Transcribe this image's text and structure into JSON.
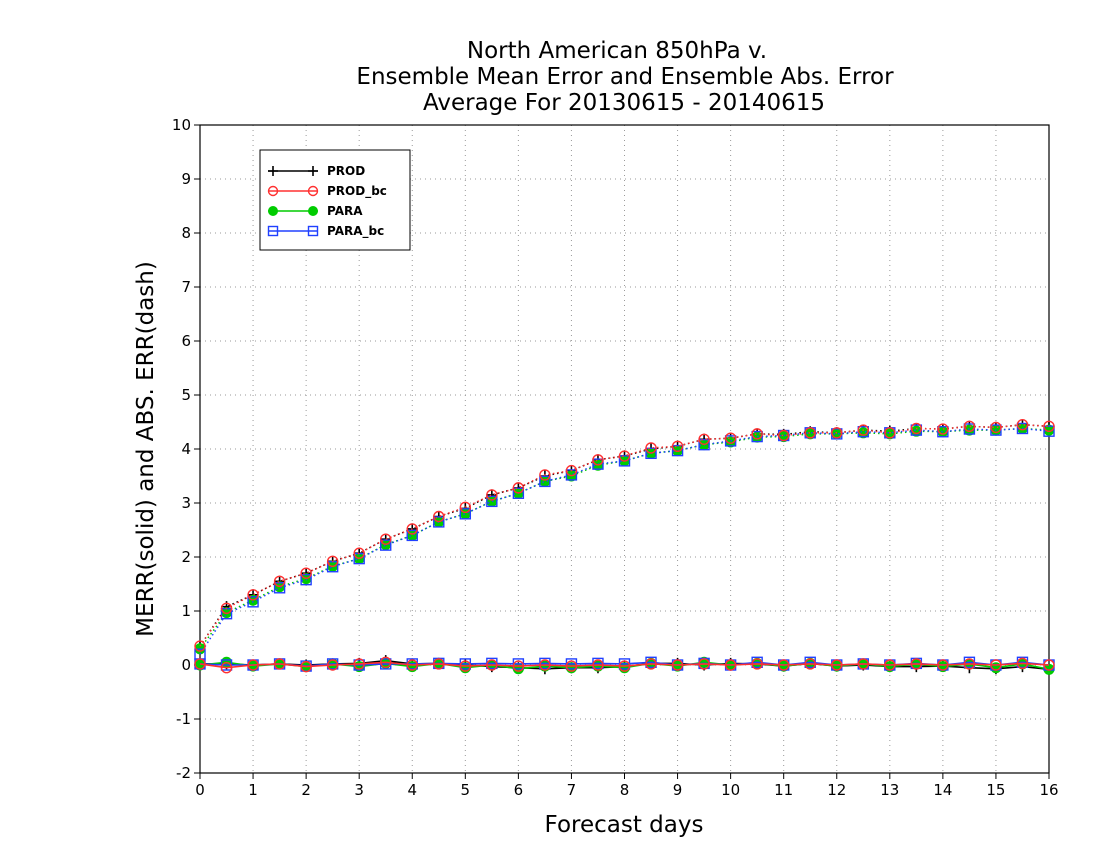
{
  "chart_data": {
    "type": "line",
    "title": [
      "North American 850hPa v.",
      "Ensemble Mean Error and Ensemble Abs. Error",
      "Average For 20130615 - 20140615"
    ],
    "xlabel": "Forecast days",
    "ylabel": "MERR(solid) and ABS. ERR(dash)",
    "xlim": [
      0,
      16
    ],
    "ylim": [
      -2,
      10
    ],
    "xticks": [
      "0",
      "1",
      "2",
      "3",
      "4",
      "5",
      "6",
      "7",
      "8",
      "9",
      "10",
      "11",
      "12",
      "13",
      "14",
      "15",
      "16"
    ],
    "yticks": [
      "-2",
      "-1",
      "0",
      "1",
      "2",
      "3",
      "4",
      "5",
      "6",
      "7",
      "8",
      "9",
      "10"
    ],
    "grid": true,
    "legend_position": "top-left",
    "x": [
      0,
      0.5,
      1,
      1.5,
      2,
      2.5,
      3,
      3.5,
      4,
      4.5,
      5,
      5.5,
      6,
      6.5,
      7,
      7.5,
      8,
      8.5,
      9,
      9.5,
      10,
      10.5,
      11,
      11.5,
      12,
      12.5,
      13,
      13.5,
      14,
      14.5,
      15,
      15.5,
      16
    ],
    "series": [
      {
        "name": "PROD",
        "color": "#000000",
        "marker": "plus",
        "merr": [
          0.02,
          0.02,
          0.0,
          0.02,
          0.0,
          0.02,
          0.03,
          0.08,
          0.02,
          0.03,
          0.0,
          -0.03,
          -0.05,
          -0.07,
          -0.05,
          -0.05,
          -0.03,
          0.03,
          0.03,
          0.0,
          0.03,
          0.02,
          -0.02,
          0.03,
          -0.02,
          0.0,
          -0.03,
          -0.03,
          -0.02,
          -0.05,
          -0.07,
          -0.03,
          -0.08
        ],
        "abserr": [
          0.35,
          1.08,
          1.3,
          1.55,
          1.7,
          1.92,
          2.07,
          2.33,
          2.52,
          2.75,
          2.9,
          3.15,
          3.28,
          3.5,
          3.6,
          3.8,
          3.87,
          4.0,
          4.05,
          4.18,
          4.2,
          4.28,
          4.27,
          4.32,
          4.3,
          4.35,
          4.33,
          4.38,
          4.37,
          4.42,
          4.4,
          4.45,
          4.42
        ]
      },
      {
        "name": "PROD_bc",
        "color": "#ff3030",
        "marker": "circle",
        "merr": [
          0.02,
          -0.05,
          0.0,
          0.02,
          -0.03,
          0.0,
          0.02,
          0.05,
          0.0,
          0.02,
          -0.02,
          0.0,
          -0.02,
          0.0,
          -0.02,
          0.0,
          -0.02,
          0.02,
          0.0,
          0.02,
          0.0,
          0.02,
          0.0,
          0.02,
          0.0,
          0.02,
          0.0,
          0.02,
          0.0,
          0.02,
          0.0,
          0.03,
          0.0
        ],
        "abserr": [
          0.35,
          1.05,
          1.3,
          1.55,
          1.7,
          1.92,
          2.07,
          2.33,
          2.52,
          2.75,
          2.92,
          3.15,
          3.28,
          3.52,
          3.6,
          3.8,
          3.87,
          4.02,
          4.05,
          4.18,
          4.2,
          4.28,
          4.25,
          4.3,
          4.3,
          4.35,
          4.3,
          4.38,
          4.37,
          4.42,
          4.4,
          4.45,
          4.42
        ]
      },
      {
        "name": "PARA",
        "color": "#00cc00",
        "marker": "filled-circle",
        "merr": [
          0.0,
          0.05,
          -0.02,
          0.02,
          -0.03,
          0.02,
          -0.03,
          0.03,
          -0.03,
          0.03,
          -0.05,
          0.0,
          -0.07,
          -0.02,
          -0.05,
          -0.02,
          -0.05,
          0.03,
          -0.02,
          0.05,
          0.0,
          0.03,
          -0.02,
          0.03,
          -0.02,
          0.02,
          -0.03,
          0.02,
          -0.03,
          0.02,
          -0.05,
          0.02,
          -0.08
        ],
        "abserr": [
          0.3,
          0.97,
          1.2,
          1.45,
          1.6,
          1.83,
          1.97,
          2.23,
          2.4,
          2.65,
          2.8,
          3.03,
          3.18,
          3.4,
          3.5,
          3.7,
          3.78,
          3.92,
          3.97,
          4.08,
          4.13,
          4.22,
          4.23,
          4.28,
          4.28,
          4.3,
          4.28,
          4.33,
          4.32,
          4.35,
          4.35,
          4.38,
          4.35
        ]
      },
      {
        "name": "PARA_bc",
        "color": "#2040ff",
        "marker": "square",
        "merr": [
          0.02,
          0.0,
          0.0,
          0.02,
          -0.02,
          0.02,
          0.0,
          0.02,
          0.02,
          0.03,
          0.02,
          0.03,
          0.02,
          0.03,
          0.02,
          0.03,
          0.02,
          0.05,
          0.0,
          0.03,
          0.0,
          0.05,
          0.0,
          0.05,
          0.0,
          0.02,
          0.0,
          0.03,
          0.0,
          0.05,
          0.0,
          0.05,
          0.0
        ],
        "abserr": [
          0.2,
          0.95,
          1.17,
          1.43,
          1.58,
          1.82,
          1.97,
          2.22,
          2.4,
          2.65,
          2.8,
          3.03,
          3.18,
          3.4,
          3.52,
          3.72,
          3.78,
          3.92,
          3.97,
          4.08,
          4.15,
          4.23,
          4.25,
          4.3,
          4.28,
          4.32,
          4.3,
          4.35,
          4.32,
          4.37,
          4.35,
          4.38,
          4.33
        ]
      }
    ]
  }
}
